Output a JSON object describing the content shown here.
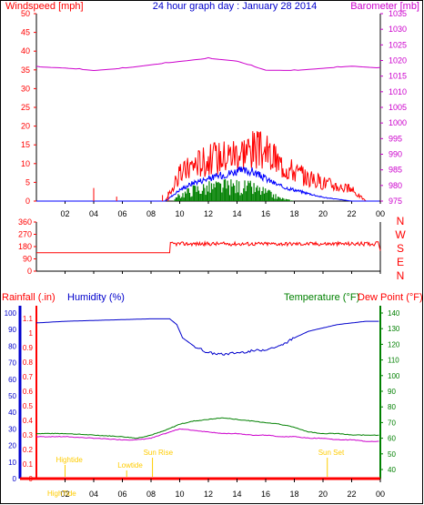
{
  "page": {
    "title": "24 hour graph day : January 28 2014"
  },
  "colors": {
    "wind": "#ff0000",
    "wind_avg": "#0000ff",
    "wind_green": "#008000",
    "barometer": "#cc00cc",
    "humidity": "#0000cc",
    "temperature": "#008000",
    "dewpoint": "#cc00cc",
    "rain": "#ff0000",
    "tide": "#ffcc00",
    "axis": "#000000"
  },
  "chart_data": [
    {
      "type": "line",
      "title": "24 hour graph day : January 28 2014",
      "left_label": "Windspeed [mph]",
      "right_label": "Barometer [mb]",
      "left_ticks": [
        "0",
        "5",
        "10",
        "15",
        "20",
        "25",
        "30",
        "35",
        "40",
        "45",
        "50"
      ],
      "right_ticks": [
        "975",
        "980",
        "985",
        "990",
        "995",
        "1000",
        "1005",
        "1010",
        "1015",
        "1020",
        "1025",
        "1030",
        "1035"
      ],
      "x_ticks": [
        "02",
        "04",
        "06",
        "08",
        "10",
        "12",
        "14",
        "16",
        "18",
        "20",
        "22",
        "00"
      ],
      "ylim_left": [
        0,
        50
      ],
      "ylim_right": [
        975,
        1035
      ],
      "series": [
        {
          "key": "barometer",
          "x": [
            0,
            2,
            4,
            6,
            8,
            10,
            12,
            14,
            16,
            18,
            20,
            22,
            24
          ],
          "y": [
            1018,
            1017.6,
            1016.8,
            1017.5,
            1018.6,
            1019.7,
            1020.7,
            1019.8,
            1016.9,
            1016.8,
            1017.5,
            1018.2,
            1017.6
          ]
        },
        {
          "key": "wind_gust",
          "x": [
            0,
            9,
            10,
            11,
            12,
            13,
            14,
            15,
            16,
            17,
            18,
            19,
            20,
            21,
            22,
            23,
            24
          ],
          "y": [
            0,
            0,
            7,
            10,
            11,
            12,
            13,
            14,
            13,
            10,
            8,
            6,
            5,
            4,
            3,
            0,
            0
          ]
        },
        {
          "key": "wind_avg",
          "x": [
            0,
            9,
            10,
            11,
            12,
            13,
            14,
            15,
            16,
            17,
            18,
            19,
            20,
            21,
            22,
            23,
            24
          ],
          "y": [
            0,
            0,
            3,
            5,
            6,
            7,
            8,
            8,
            6,
            4,
            3,
            2,
            1,
            0.5,
            0,
            0,
            0
          ]
        },
        {
          "key": "wind_green",
          "x": [
            0,
            9.5,
            10,
            11,
            12,
            13,
            14,
            15,
            16,
            17,
            18,
            24
          ],
          "y": [
            0,
            0,
            2,
            4,
            4.5,
            5,
            5,
            4.5,
            3,
            1,
            0,
            0
          ]
        }
      ]
    },
    {
      "type": "line",
      "left_ticks": [
        "360",
        "270",
        "180",
        "90",
        "0"
      ],
      "right_ticks": [
        "N",
        "W",
        "S",
        "E",
        "N"
      ],
      "x_ticks": [
        "02",
        "04",
        "06",
        "08",
        "10",
        "12",
        "14",
        "16",
        "18",
        "20",
        "22",
        "00"
      ],
      "ylim": [
        0,
        360
      ],
      "series": [
        {
          "key": "wind_direction",
          "x": [
            0,
            9.3,
            9.4,
            23.8,
            24
          ],
          "y": [
            135,
            135,
            200,
            200,
            150
          ]
        }
      ]
    },
    {
      "type": "line",
      "labels": {
        "rain": "Rainfall (.in)",
        "humidity": "Humidity (%)",
        "temperature": "Temperature (°F)",
        "dewpoint": "Dew Point (°F)"
      },
      "rain_ticks": [
        "0",
        "0.1",
        "0.2",
        "0.3",
        "0.4",
        "0.5",
        "0.6",
        "0.7",
        "0.8",
        "0.9",
        "1",
        "1.1"
      ],
      "humidity_ticks": [
        "0",
        "10",
        "20",
        "30",
        "40",
        "50",
        "60",
        "70",
        "80",
        "90",
        "100"
      ],
      "temp_ticks": [
        "40",
        "50",
        "60",
        "70",
        "80",
        "90",
        "100",
        "110",
        "120",
        "130",
        "140"
      ],
      "x_ticks": [
        "02",
        "04",
        "06",
        "08",
        "10",
        "12",
        "14",
        "16",
        "18",
        "20",
        "22",
        "00"
      ],
      "tide_labels": [
        "Hightide",
        "Lowtide",
        "Sun Rise",
        "Sun Set",
        "HighTide"
      ],
      "series": [
        {
          "key": "humidity",
          "x": [
            0,
            1,
            2,
            4,
            6,
            8,
            9.3,
            9.8,
            10.2,
            11,
            12,
            13,
            14,
            15,
            16,
            17,
            18,
            19,
            20,
            21,
            22,
            23,
            24
          ],
          "y": [
            94,
            94.5,
            95,
            95.5,
            96,
            96.5,
            96.5,
            93,
            85,
            80,
            76,
            75,
            76,
            77,
            78,
            80,
            85,
            89,
            91,
            93,
            94,
            95,
            95
          ]
        },
        {
          "key": "temperature",
          "x": [
            0,
            2,
            4,
            6,
            7,
            8,
            9,
            10,
            11,
            12,
            13,
            14,
            15,
            16,
            17,
            18,
            19,
            20,
            21,
            22,
            23,
            24
          ],
          "y": [
            63,
            63,
            62,
            61,
            60,
            62,
            65,
            69,
            71,
            72,
            73,
            72,
            71,
            70,
            69,
            67,
            64,
            63,
            63,
            62,
            62,
            62
          ]
        },
        {
          "key": "dewpoint",
          "x": [
            0,
            2,
            4,
            6,
            7,
            8,
            9,
            10,
            11,
            12,
            13,
            14,
            15,
            16,
            17,
            18,
            19,
            20,
            21,
            22,
            23,
            24
          ],
          "y": [
            61,
            61,
            60,
            59,
            59,
            60,
            63,
            66,
            65,
            64,
            63,
            63,
            62,
            62,
            61,
            61,
            60,
            60,
            59,
            59,
            58,
            58
          ]
        },
        {
          "key": "rain",
          "x": [
            0,
            24
          ],
          "y": [
            0,
            0
          ]
        }
      ]
    }
  ]
}
